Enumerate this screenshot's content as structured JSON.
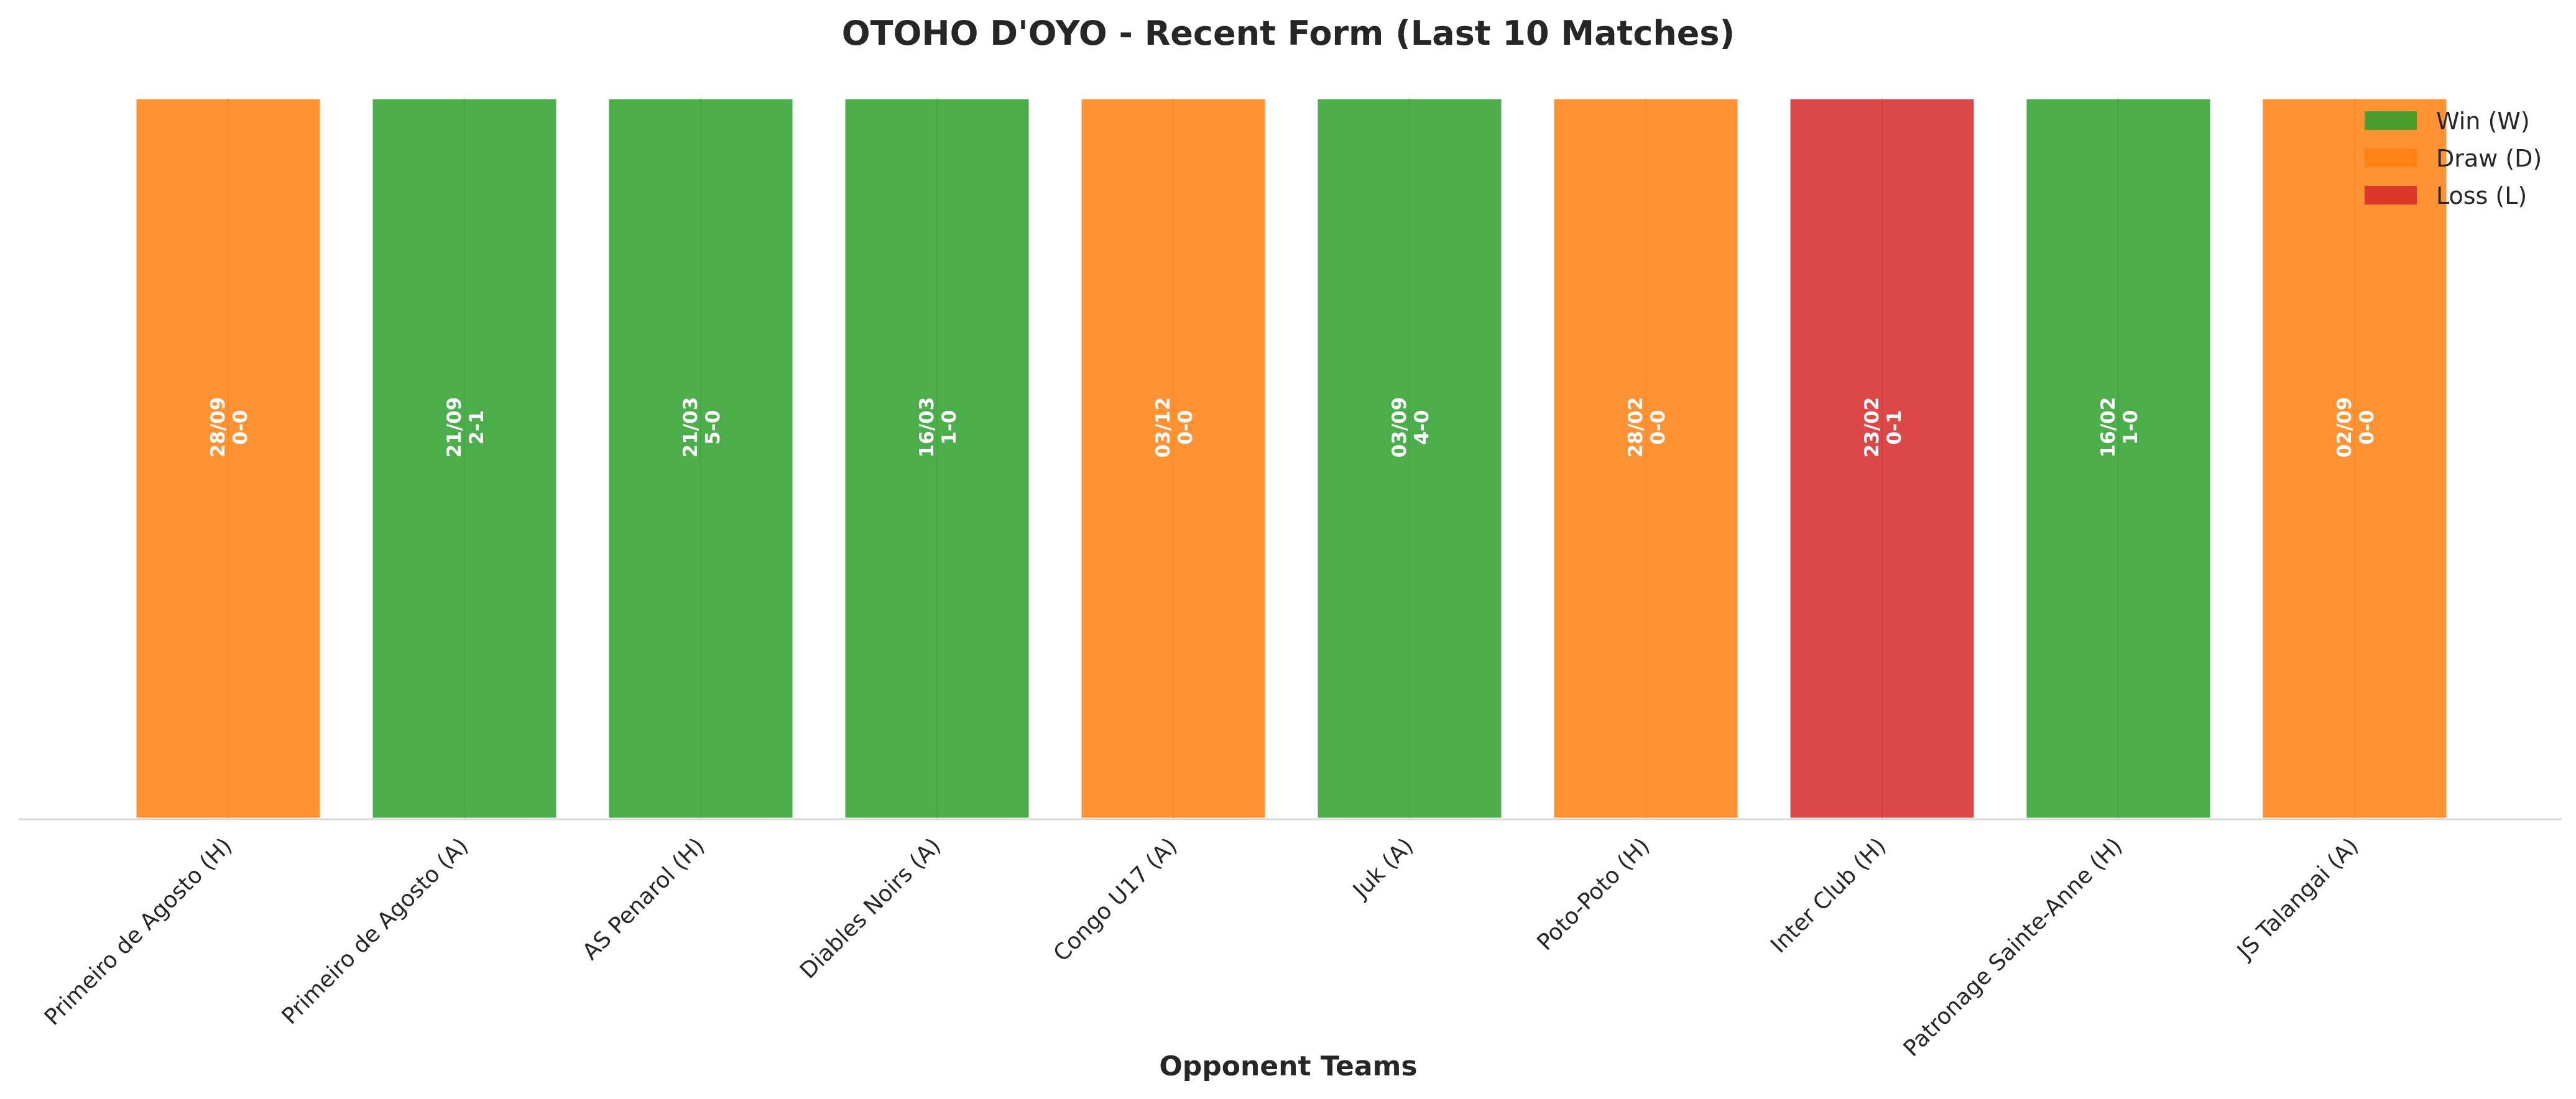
{
  "chart_data": {
    "type": "bar",
    "title": "OTOHO D'OYO - Recent Form (Last 10 Matches)",
    "xlabel": "Opponent Teams",
    "ylabel": "",
    "ylim": [
      0,
      1
    ],
    "grid": false,
    "legend_position": "top-right",
    "categories": [
      "Primeiro de Agosto (H)",
      "Primeiro de Agosto (A)",
      "AS Penarol (H)",
      "Diables Noirs (A)",
      "Congo U17 (A)",
      "Juk (A)",
      "Poto-Poto (H)",
      "Inter Club (H)",
      "Patronage Sainte-Anne (H)",
      "JS Talangai (A)"
    ],
    "values": [
      1,
      1,
      1,
      1,
      1,
      1,
      1,
      1,
      1,
      1
    ],
    "results": [
      "D",
      "W",
      "W",
      "W",
      "D",
      "W",
      "D",
      "L",
      "W",
      "D"
    ],
    "dates": [
      "28/09",
      "21/09",
      "21/03",
      "16/03",
      "03/12",
      "03/09",
      "28/02",
      "23/02",
      "16/02",
      "02/09"
    ],
    "scores": [
      "0-0",
      "2-1",
      "5-0",
      "1-0",
      "0-0",
      "4-0",
      "0-0",
      "0-1",
      "1-0",
      "0-0"
    ],
    "legend": [
      {
        "key": "W",
        "label": "Win (W)",
        "color": "#2ca02c"
      },
      {
        "key": "D",
        "label": "Draw (D)",
        "color": "#ff7f0e"
      },
      {
        "key": "L",
        "label": "Loss (L)",
        "color": "#d62728"
      }
    ]
  }
}
